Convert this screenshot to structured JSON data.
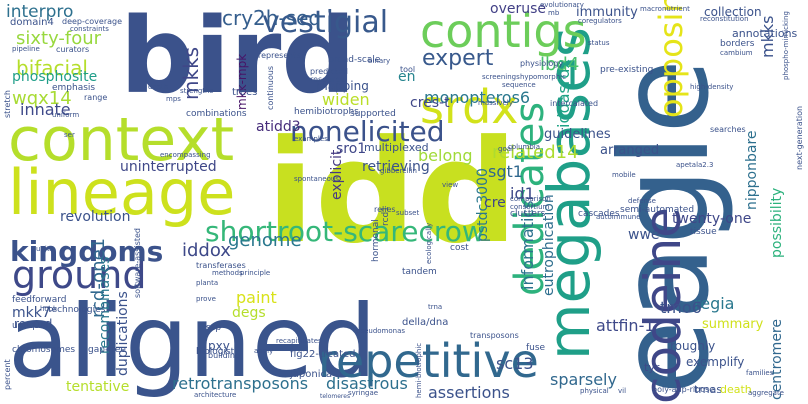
{
  "words": [
    {
      "text": "idd",
      "color": "#c8e020"
    },
    {
      "text": "eagle",
      "color": "#34618d"
    },
    {
      "text": "aligned",
      "color": "#3a548c"
    },
    {
      "text": "bird",
      "color": "#3b528b"
    },
    {
      "text": "context",
      "color": "#b5de2b"
    },
    {
      "text": "lineage",
      "color": "#cde11d"
    },
    {
      "text": "megabases",
      "color": "#1f9f88"
    },
    {
      "text": "contigs",
      "color": "#6ccd5a"
    },
    {
      "text": "repetitive",
      "color": "#31688e"
    },
    {
      "text": "ground",
      "color": "#3e4989"
    },
    {
      "text": "dedicates",
      "color": "#2db27d"
    },
    {
      "text": "srdx",
      "color": "#d2e21b"
    },
    {
      "text": "shortroot-scarecrow",
      "color": "#35b779"
    },
    {
      "text": "kingdoms",
      "color": "#3b528b"
    },
    {
      "text": "opposing",
      "color": "#e5e419"
    },
    {
      "text": "codeine",
      "color": "#3f4788"
    },
    {
      "text": "nonelicited",
      "color": "#3b528b"
    },
    {
      "text": "vestigial",
      "color": "#38598c"
    },
    {
      "text": "expert",
      "color": "#38598c"
    },
    {
      "text": "cry2h-seq",
      "color": "#355e8d"
    },
    {
      "text": "sixty-four",
      "color": "#98d83e"
    },
    {
      "text": "interpro",
      "color": "#2d708e"
    },
    {
      "text": "mkks",
      "color": "#3f4788"
    },
    {
      "text": "mkk-mpk",
      "color": "#481467"
    },
    {
      "text": "bifacial",
      "color": "#b5de2b"
    },
    {
      "text": "wqx14",
      "color": "#a8db34"
    },
    {
      "text": "phosphosite",
      "color": "#1f9e89"
    },
    {
      "text": "innate",
      "color": "#3e4989"
    },
    {
      "text": "overuse",
      "color": "#424086"
    },
    {
      "text": "immunity",
      "color": "#3b528b"
    },
    {
      "text": "collection",
      "color": "#3b528b"
    },
    {
      "text": "annotations",
      "color": "#3b528b"
    },
    {
      "text": "mapping",
      "color": "#3b528b"
    },
    {
      "text": "monopteros6",
      "color": "#2a788e"
    },
    {
      "text": "cres-t",
      "color": "#3f4788"
    },
    {
      "text": "en",
      "color": "#25848e"
    },
    {
      "text": "widen",
      "color": "#bade28"
    },
    {
      "text": "atidd3",
      "color": "#472d7b"
    },
    {
      "text": "sro1",
      "color": "#3f4788"
    },
    {
      "text": "belong",
      "color": "#a0da39"
    },
    {
      "text": "lbd4",
      "color": "#4ac16d"
    },
    {
      "text": "iddasrdx",
      "color": "#20a386"
    },
    {
      "text": "guidelines",
      "color": "#3b528b"
    },
    {
      "text": "related14",
      "color": "#addc30"
    },
    {
      "text": "sgt1",
      "color": "#31688e"
    },
    {
      "text": "pstdc3000",
      "color": "#2a788e"
    },
    {
      "text": "informatics",
      "color": "#2c728e"
    },
    {
      "text": "eutrophication",
      "color": "#2e6e8e"
    },
    {
      "text": "nipponbare",
      "color": "#2d708e"
    },
    {
      "text": "possibility",
      "color": "#2db27d"
    },
    {
      "text": "mkks",
      "color": "#3b528b"
    },
    {
      "text": "id1",
      "color": "#3e4989"
    },
    {
      "text": "cre",
      "color": "#3f4788"
    },
    {
      "text": "arranged",
      "color": "#3b528b"
    },
    {
      "text": "wwe",
      "color": "#3b528b"
    },
    {
      "text": "twenty-one",
      "color": "#3f4788"
    },
    {
      "text": "genome",
      "color": "#2a788e"
    },
    {
      "text": "iddox",
      "color": "#3e4989"
    },
    {
      "text": "explicit",
      "color": "#443a83"
    },
    {
      "text": "retrieving",
      "color": "#3b528b"
    },
    {
      "text": "multiplexed",
      "color": "#3b528b"
    },
    {
      "text": "revolution",
      "color": "#3b528b"
    },
    {
      "text": "uninterrupted",
      "color": "#3f4788"
    },
    {
      "text": "mkk7",
      "color": "#3b528b"
    },
    {
      "text": "rcd-one1",
      "color": "#31688e"
    },
    {
      "text": "recombinases",
      "color": "#2a788e"
    },
    {
      "text": "duplications",
      "color": "#3b528b"
    },
    {
      "text": "degs",
      "color": "#b5de2b"
    },
    {
      "text": "paint",
      "color": "#d8e219"
    },
    {
      "text": "regia",
      "color": "#2a788e"
    },
    {
      "text": "tmo6",
      "color": "#3b528b"
    },
    {
      "text": "attfin-1",
      "color": "#3e4989"
    },
    {
      "text": "sc13",
      "color": "#3b528b"
    },
    {
      "text": "sparsely",
      "color": "#31688e"
    },
    {
      "text": "assertions",
      "color": "#3b528b"
    },
    {
      "text": "disastrous",
      "color": "#2d708e"
    },
    {
      "text": "retrotransposons",
      "color": "#2d708e"
    },
    {
      "text": "tentative",
      "color": "#b5de2b"
    },
    {
      "text": "pxy",
      "color": "#3b528b"
    },
    {
      "text": "centromere",
      "color": "#31688e"
    },
    {
      "text": "summary",
      "color": "#d0e11c"
    },
    {
      "text": "exemplify",
      "color": "#3b528b"
    },
    {
      "text": "roughly",
      "color": "#3b528b"
    },
    {
      "text": "tyr",
      "color": "#3e4989"
    },
    {
      "text": "trnas",
      "color": "#3b528b"
    },
    {
      "text": "death",
      "color": "#d2e21b"
    },
    {
      "text": "record",
      "color": "#3b528b"
    },
    {
      "text": "domain4",
      "color": "#3b528b"
    },
    {
      "text": "deep-coverage",
      "color": "#3b528b"
    },
    {
      "text": "constraints",
      "color": "#3b528b"
    },
    {
      "text": "curators",
      "color": "#3b528b"
    },
    {
      "text": "pipeline",
      "color": "#3b528b"
    },
    {
      "text": "emphasis",
      "color": "#3b528b"
    },
    {
      "text": "range",
      "color": "#3b528b"
    },
    {
      "text": "stretch",
      "color": "#3b528b"
    },
    {
      "text": "uniform",
      "color": "#3b528b"
    },
    {
      "text": "ser",
      "color": "#3b528b"
    },
    {
      "text": "broad-scale",
      "color": "#3b528b"
    },
    {
      "text": "continuous",
      "color": "#3b528b"
    },
    {
      "text": "represents",
      "color": "#3b528b"
    },
    {
      "text": "binary",
      "color": "#3b528b"
    },
    {
      "text": "predicted",
      "color": "#3b528b"
    },
    {
      "text": "resource",
      "color": "#3b528b"
    },
    {
      "text": "tool",
      "color": "#3b528b"
    },
    {
      "text": "screenings",
      "color": "#3b528b"
    },
    {
      "text": "sequence",
      "color": "#3b528b"
    },
    {
      "text": "massively",
      "color": "#3b528b"
    },
    {
      "text": "intercalated",
      "color": "#3b528b"
    },
    {
      "text": "physiology",
      "color": "#3b528b"
    },
    {
      "text": "hypomorphic",
      "color": "#3b528b"
    },
    {
      "text": "pre-existing",
      "color": "#3b528b"
    },
    {
      "text": "high-density",
      "color": "#3b528b"
    },
    {
      "text": "next-generation",
      "color": "#3b528b"
    },
    {
      "text": "searches",
      "color": "#3b528b"
    },
    {
      "text": "borders",
      "color": "#3b528b"
    },
    {
      "text": "cambium",
      "color": "#3b528b"
    },
    {
      "text": "phospho-mimicking",
      "color": "#3b528b"
    },
    {
      "text": "macronutrient",
      "color": "#3b528b"
    },
    {
      "text": "reconstitution",
      "color": "#3b528b"
    },
    {
      "text": "evolutionary",
      "color": "#3b528b"
    },
    {
      "text": "mb",
      "color": "#3b528b"
    },
    {
      "text": "coregulators",
      "color": "#3b528b"
    },
    {
      "text": "status",
      "color": "#3b528b"
    },
    {
      "text": "death",
      "color": "#3b528b"
    },
    {
      "text": "strengths",
      "color": "#3b528b"
    },
    {
      "text": "trees",
      "color": "#3b528b"
    },
    {
      "text": "hemibiotrophs",
      "color": "#3b528b"
    },
    {
      "text": "supported",
      "color": "#3b528b"
    },
    {
      "text": "combinations",
      "color": "#3b528b"
    },
    {
      "text": "examples",
      "color": "#3b528b"
    },
    {
      "text": "gibberellin",
      "color": "#3b528b"
    },
    {
      "text": "spontaneous",
      "color": "#3b528b"
    },
    {
      "text": "transferases",
      "color": "#3b528b"
    },
    {
      "text": "relies",
      "color": "#3b528b"
    },
    {
      "text": "hormonal",
      "color": "#3b528b"
    },
    {
      "text": "rcd1",
      "color": "#3b528b"
    },
    {
      "text": "subset",
      "color": "#3b528b"
    },
    {
      "text": "cost",
      "color": "#3b528b"
    },
    {
      "text": "clusters",
      "color": "#3b528b"
    },
    {
      "text": "cascades",
      "color": "#3b528b"
    },
    {
      "text": "semi-automated",
      "color": "#3b528b"
    },
    {
      "text": "tissue",
      "color": "#3b528b"
    },
    {
      "text": "defense",
      "color": "#3b528b"
    },
    {
      "text": "mobile",
      "color": "#3b528b"
    },
    {
      "text": "apetala2.3",
      "color": "#3b528b"
    },
    {
      "text": "encompassing",
      "color": "#3b528b"
    },
    {
      "text": "feedforward",
      "color": "#3b528b"
    },
    {
      "text": "software-assisted",
      "color": "#3b528b"
    },
    {
      "text": "methods",
      "color": "#3b528b"
    },
    {
      "text": "planta",
      "color": "#3b528b"
    },
    {
      "text": "principle",
      "color": "#3b528b"
    },
    {
      "text": "tandem",
      "color": "#3b528b"
    },
    {
      "text": "unequal",
      "color": "#3b528b"
    },
    {
      "text": "technologies",
      "color": "#3b528b"
    },
    {
      "text": "ssp",
      "color": "#3b528b"
    },
    {
      "text": "prove",
      "color": "#3b528b"
    },
    {
      "text": "building",
      "color": "#3b528b"
    },
    {
      "text": "della/dna",
      "color": "#3b528b"
    },
    {
      "text": "transposons",
      "color": "#3b528b"
    },
    {
      "text": "fuse",
      "color": "#3b528b"
    },
    {
      "text": "trna",
      "color": "#3b528b"
    },
    {
      "text": "chromosomes",
      "color": "#3b528b"
    },
    {
      "text": "gap-free",
      "color": "#3b528b"
    },
    {
      "text": "biologist",
      "color": "#3b528b"
    },
    {
      "text": "apply",
      "color": "#3b528b"
    },
    {
      "text": "flg22-treated",
      "color": "#3b528b"
    },
    {
      "text": "japonica",
      "color": "#3b528b"
    },
    {
      "text": "recapitulates",
      "color": "#3b528b"
    },
    {
      "text": "pseudomonas",
      "color": "#3b528b"
    },
    {
      "text": "syringae",
      "color": "#3b528b"
    },
    {
      "text": "telomeres",
      "color": "#3b528b"
    },
    {
      "text": "poly-adp-ribose",
      "color": "#3b528b"
    },
    {
      "text": "aggregate",
      "color": "#3b528b"
    },
    {
      "text": "families",
      "color": "#3b528b"
    },
    {
      "text": "percent",
      "color": "#3b528b"
    },
    {
      "text": "architecture",
      "color": "#3b528b"
    },
    {
      "text": "hemi-biotrophic",
      "color": "#3b528b"
    },
    {
      "text": "ecologically",
      "color": "#3b528b"
    },
    {
      "text": "physical",
      "color": "#3b528b"
    },
    {
      "text": "vil",
      "color": "#3b528b"
    },
    {
      "text": "mps",
      "color": "#3b528b"
    },
    {
      "text": "units",
      "color": "#3b528b"
    },
    {
      "text": "hook",
      "color": "#3b528b"
    },
    {
      "text": "view",
      "color": "#3b528b"
    },
    {
      "text": "goal",
      "color": "#3b528b"
    },
    {
      "text": "columbia",
      "color": "#3b528b"
    },
    {
      "text": "comparison",
      "color": "#3b528b"
    },
    {
      "text": "consortium",
      "color": "#3b528b"
    },
    {
      "text": "autoimmune",
      "color": "#3b528b"
    }
  ]
}
